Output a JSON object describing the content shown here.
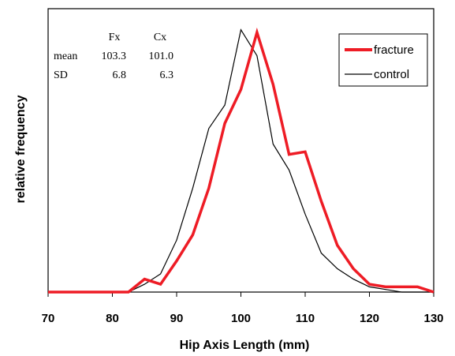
{
  "chart_data": {
    "type": "line",
    "xlabel": "Hip Axis Length (mm)",
    "ylabel": "relative frequency",
    "xlim": [
      70,
      130
    ],
    "ylim": [
      0,
      1.0
    ],
    "x_ticks": [
      "70",
      "80",
      "90",
      "100",
      "110",
      "120",
      "130"
    ],
    "grid": false,
    "legend_position": "top-right",
    "series": [
      {
        "name": "fracture",
        "color": "#ee1c25",
        "points": [
          [
            70,
            0
          ],
          [
            82.5,
            0
          ],
          [
            85,
            0.05
          ],
          [
            87.5,
            0.03
          ],
          [
            90,
            0.12
          ],
          [
            92.5,
            0.22
          ],
          [
            95,
            0.4
          ],
          [
            97.5,
            0.65
          ],
          [
            100,
            0.78
          ],
          [
            102.5,
            1.0
          ],
          [
            105,
            0.8
          ],
          [
            107.5,
            0.53
          ],
          [
            110,
            0.54
          ],
          [
            112.5,
            0.35
          ],
          [
            115,
            0.18
          ],
          [
            117.5,
            0.09
          ],
          [
            120,
            0.03
          ],
          [
            122.5,
            0.02
          ],
          [
            127.5,
            0.02
          ],
          [
            130,
            0
          ]
        ]
      },
      {
        "name": "control",
        "color": "#000000",
        "points": [
          [
            70,
            0
          ],
          [
            82.5,
            0
          ],
          [
            85,
            0.03
          ],
          [
            87.5,
            0.07
          ],
          [
            90,
            0.2
          ],
          [
            92.5,
            0.4
          ],
          [
            95,
            0.63
          ],
          [
            97.5,
            0.72
          ],
          [
            100,
            1.01
          ],
          [
            102.5,
            0.91
          ],
          [
            105,
            0.57
          ],
          [
            107.5,
            0.47
          ],
          [
            110,
            0.3
          ],
          [
            112.5,
            0.15
          ],
          [
            115,
            0.09
          ],
          [
            117.5,
            0.05
          ],
          [
            120,
            0.02
          ],
          [
            122.5,
            0.01
          ],
          [
            125,
            0
          ],
          [
            130,
            0
          ]
        ]
      }
    ],
    "stats_table": {
      "col_headers": [
        "Fx",
        "Cx"
      ],
      "rows": [
        {
          "label": "mean",
          "values": [
            "103.3",
            "101.0"
          ]
        },
        {
          "label": "SD",
          "values": [
            "6.8",
            "6.3"
          ]
        }
      ]
    }
  }
}
